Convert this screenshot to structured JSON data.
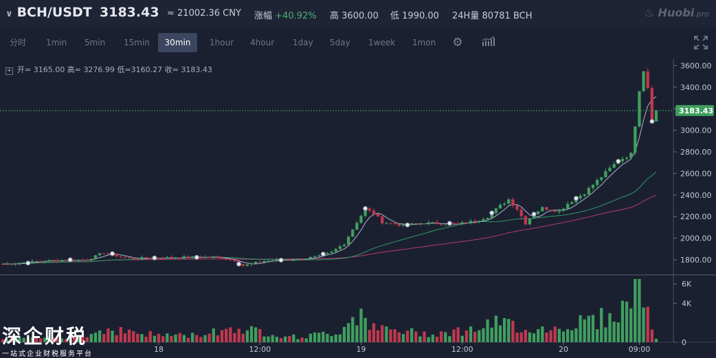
{
  "header": {
    "pair": "BCH/USDT",
    "price": "3183.43",
    "cny": "≈ 21002.36 CNY",
    "change_label": "涨幅",
    "change_value": "+40.92%",
    "high_label": "高",
    "high_value": "3600.00",
    "low_label": "低",
    "low_value": "1990.00",
    "vol_label": "24H量",
    "vol_value": "80781 BCH",
    "logo_main": "Huobi",
    "logo_suffix": ".pro"
  },
  "timeframes": [
    "分时",
    "1min",
    "5min",
    "15min",
    "30min",
    "1hour",
    "4hour",
    "1day",
    "5day",
    "1week",
    "1mon"
  ],
  "active_timeframe": "30min",
  "ohlc": {
    "open_label": "开=",
    "open": "3165.00",
    "high_label": "高=",
    "high": "3276.99",
    "low_label": "低=",
    "low": "3160.27",
    "close_label": "收=",
    "close": "3183.43"
  },
  "colors": {
    "up": "#3f9f5f",
    "down": "#c0384e",
    "ma_short": "#b0b7cc",
    "ma_mid": "#2f9a66",
    "ma_long": "#b43a70",
    "price_tag": "#3f9f5f"
  },
  "watermark": {
    "title": "深企财税",
    "subtitle": "一站式企业财税服务平台"
  },
  "chart_data": {
    "type": "candlestick",
    "price_axis": {
      "ticks": [
        1800,
        2000,
        2200,
        2400,
        2600,
        2800,
        3000,
        3200,
        3400,
        3600
      ],
      "range": [
        1660,
        3660
      ]
    },
    "volume_axis": {
      "ticks": [
        "0",
        "4K",
        "6K"
      ],
      "tick_values": [
        0,
        4000,
        6000
      ],
      "max": 6500
    },
    "x_tick_labels": [
      "18",
      "12:00",
      "19",
      "12:00",
      "20",
      "09:00"
    ],
    "x_tick_index": [
      37,
      61,
      85,
      109,
      133,
      151
    ],
    "last_price": "3183.43",
    "last_price_value": 3183.43,
    "candle_count": 156,
    "price_anchors": [
      [
        0,
        1760
      ],
      [
        10,
        1790
      ],
      [
        20,
        1800
      ],
      [
        24,
        1865
      ],
      [
        30,
        1810
      ],
      [
        40,
        1820
      ],
      [
        50,
        1825
      ],
      [
        55,
        1795
      ],
      [
        57,
        1745
      ],
      [
        62,
        1790
      ],
      [
        70,
        1805
      ],
      [
        75,
        1830
      ],
      [
        78,
        1870
      ],
      [
        81,
        1950
      ],
      [
        84,
        2150
      ],
      [
        86,
        2270
      ],
      [
        88,
        2230
      ],
      [
        90,
        2150
      ],
      [
        95,
        2120
      ],
      [
        100,
        2140
      ],
      [
        108,
        2130
      ],
      [
        112,
        2160
      ],
      [
        115,
        2200
      ],
      [
        118,
        2300
      ],
      [
        120,
        2360
      ],
      [
        122,
        2270
      ],
      [
        124,
        2140
      ],
      [
        126,
        2230
      ],
      [
        128,
        2280
      ],
      [
        132,
        2250
      ],
      [
        134,
        2320
      ],
      [
        138,
        2420
      ],
      [
        142,
        2570
      ],
      [
        146,
        2720
      ],
      [
        149,
        2780
      ],
      [
        150,
        3050
      ],
      [
        151,
        3380
      ],
      [
        152,
        3560
      ],
      [
        153,
        3400
      ],
      [
        154,
        3100
      ],
      [
        155,
        3183
      ]
    ],
    "volume_anchors": [
      [
        0,
        300
      ],
      [
        20,
        600
      ],
      [
        24,
        1400
      ],
      [
        35,
        800
      ],
      [
        45,
        700
      ],
      [
        55,
        1500
      ],
      [
        70,
        500
      ],
      [
        80,
        1100
      ],
      [
        83,
        2700
      ],
      [
        85,
        3300
      ],
      [
        88,
        1400
      ],
      [
        100,
        900
      ],
      [
        110,
        1200
      ],
      [
        118,
        2000
      ],
      [
        121,
        1800
      ],
      [
        125,
        1300
      ],
      [
        132,
        1500
      ],
      [
        138,
        2200
      ],
      [
        144,
        2600
      ],
      [
        148,
        3600
      ],
      [
        149,
        5000
      ],
      [
        150,
        5900
      ],
      [
        151,
        6000
      ],
      [
        152,
        3800
      ],
      [
        153,
        3600
      ],
      [
        154,
        1600
      ],
      [
        155,
        500
      ]
    ],
    "marker_index": [
      6,
      16,
      26,
      36,
      46,
      56,
      66,
      76,
      86,
      96,
      106,
      116,
      126,
      136,
      146,
      154
    ]
  }
}
